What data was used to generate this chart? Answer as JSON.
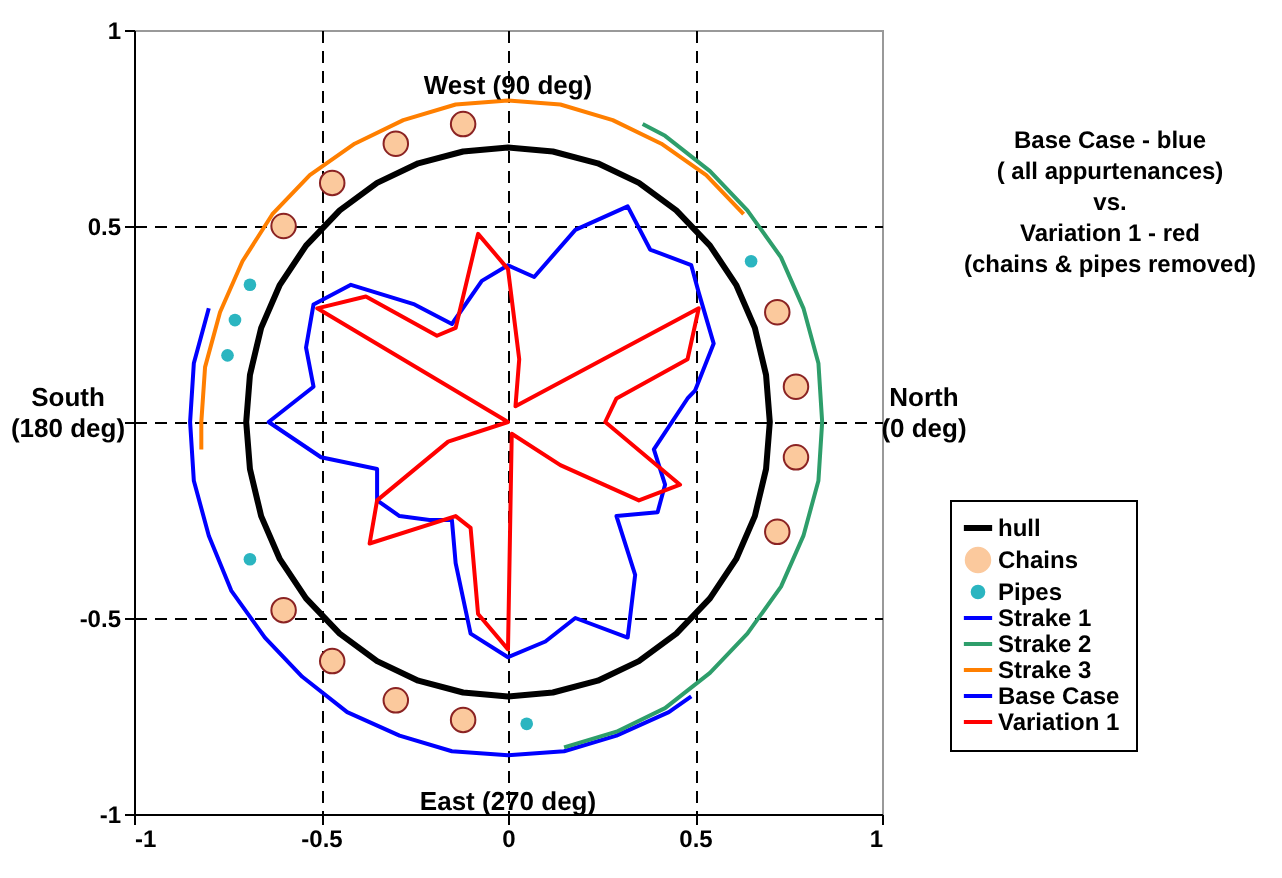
{
  "chart_data": {
    "type": "line",
    "annotations": [
      "West (90 deg)",
      "East (270 deg)",
      "North\n(0 deg)",
      "South\n(180 deg)",
      "Base Case - blue\n( all appurtenances)\nvs.\nVariation 1 - red\n(chains & pipes removed)"
    ],
    "xlim": [
      -1,
      1
    ],
    "ylim": [
      -1,
      1
    ],
    "xticks": [
      -1,
      -0.5,
      0,
      0.5,
      1
    ],
    "yticks": [
      -1,
      -0.5,
      {
        "value": 0,
        "label": null
      },
      0.5,
      1
    ],
    "grid": true,
    "legend": "right",
    "series": [
      {
        "name": "hull",
        "type": "line",
        "color": "#000000",
        "x": [
          0.7,
          0.69,
          0.66,
          0.61,
          0.54,
          0.45,
          0.35,
          0.24,
          0.12,
          0,
          -0.12,
          -0.24,
          -0.35,
          -0.45,
          -0.54,
          -0.61,
          -0.66,
          -0.69,
          -0.7,
          -0.69,
          -0.66,
          -0.61,
          -0.54,
          -0.45,
          -0.35,
          -0.24,
          -0.12,
          0,
          0.12,
          0.24,
          0.35,
          0.45,
          0.54,
          0.61,
          0.66,
          0.69,
          0.7,
          0.69
        ],
        "values": [
          0,
          0.12,
          0.24,
          0.35,
          0.45,
          0.54,
          0.61,
          0.66,
          0.69,
          0.7,
          0.69,
          0.66,
          0.61,
          0.54,
          0.45,
          0.35,
          0.24,
          0.12,
          0,
          -0.12,
          -0.24,
          -0.35,
          -0.45,
          -0.54,
          -0.61,
          -0.66,
          -0.69,
          -0.7,
          -0.69,
          -0.66,
          -0.61,
          -0.54,
          -0.45,
          -0.35,
          -0.24,
          -0.12,
          0,
          0.12
        ]
      },
      {
        "name": "Chains",
        "type": "scatter",
        "marker": "circle",
        "color": "#fbc99d",
        "x": [
          -0.12,
          -0.3,
          -0.47,
          -0.6,
          0.72,
          0.77,
          0.77,
          0.72,
          -0.6,
          -0.47,
          -0.3,
          -0.12
        ],
        "values": [
          0.76,
          0.71,
          0.61,
          0.5,
          0.28,
          0.09,
          -0.09,
          -0.28,
          -0.48,
          -0.61,
          -0.71,
          -0.76
        ]
      },
      {
        "name": "Pipes",
        "type": "scatter",
        "marker": "circle",
        "color": "#2bb5c0",
        "x": [
          0.65,
          -0.69,
          -0.73,
          -0.75,
          -0.69,
          0.05
        ],
        "values": [
          0.41,
          0.35,
          0.26,
          0.17,
          -0.35,
          -0.77
        ]
      },
      {
        "name": "Strake 1",
        "type": "line",
        "color": "#0000ff",
        "x": [
          -0.8,
          -0.84,
          -0.85,
          -0.84,
          -0.8,
          -0.74,
          -0.65,
          -0.55,
          -0.43,
          -0.29,
          -0.15,
          0,
          0.15,
          0.29,
          0.43,
          0.49
        ],
        "values": [
          0.29,
          0.15,
          0,
          -0.15,
          -0.29,
          -0.43,
          -0.55,
          -0.65,
          -0.74,
          -0.8,
          -0.84,
          -0.85,
          -0.84,
          -0.8,
          -0.74,
          -0.7
        ]
      },
      {
        "name": "Strake 2",
        "type": "line",
        "color": "#2e9e6b",
        "x": [
          0.36,
          0.42,
          0.54,
          0.64,
          0.73,
          0.79,
          0.83,
          0.84,
          0.83,
          0.79,
          0.73,
          0.64,
          0.54,
          0.42,
          0.29,
          0.15
        ],
        "values": [
          0.76,
          0.73,
          0.64,
          0.54,
          0.42,
          0.29,
          0.15,
          0,
          -0.15,
          -0.29,
          -0.42,
          -0.54,
          -0.64,
          -0.73,
          -0.79,
          -0.83
        ]
      },
      {
        "name": "Strake 3",
        "type": "line",
        "color": "#ff7f00",
        "x": [
          0.63,
          0.53,
          0.41,
          0.28,
          0.14,
          0,
          -0.14,
          -0.28,
          -0.41,
          -0.53,
          -0.63,
          -0.71,
          -0.77,
          -0.81,
          -0.82,
          -0.82
        ],
        "values": [
          0.53,
          0.63,
          0.71,
          0.77,
          0.81,
          0.82,
          0.81,
          0.77,
          0.71,
          0.63,
          0.53,
          0.41,
          0.28,
          0.14,
          0,
          -0.07
        ]
      },
      {
        "name": "Base Case",
        "type": "line",
        "color": "#0000ff",
        "x": [
          0.0,
          0.07,
          0.18,
          0.32,
          0.38,
          0.49,
          0.51,
          0.55,
          0.5,
          0.48,
          0.39,
          0.42,
          0.4,
          0.29,
          0.34,
          0.32,
          0.18,
          0.1,
          0.0,
          -0.1,
          -0.14,
          -0.15,
          -0.21,
          -0.29,
          -0.35,
          -0.35,
          -0.5,
          -0.64,
          -0.52,
          -0.54,
          -0.52,
          -0.42,
          -0.25,
          -0.15,
          -0.07,
          0.0,
          0.07
        ],
        "values": [
          0.4,
          0.37,
          0.49,
          0.55,
          0.44,
          0.4,
          0.33,
          0.2,
          0.08,
          0.06,
          -0.07,
          -0.16,
          -0.23,
          -0.24,
          -0.39,
          -0.55,
          -0.5,
          -0.56,
          -0.6,
          -0.54,
          -0.36,
          -0.25,
          -0.25,
          -0.24,
          -0.2,
          -0.12,
          -0.09,
          0.0,
          0.09,
          0.19,
          0.3,
          0.35,
          0.3,
          0.25,
          0.36,
          0.4,
          0.37
        ]
      },
      {
        "name": "Variation 1",
        "type": "line",
        "color": "#ff0000",
        "x": [
          0.0,
          -0.51,
          -0.38,
          -0.19,
          -0.14,
          -0.08,
          0.0,
          0.03,
          0.02,
          0.51,
          0.48,
          0.29,
          0.26,
          0.46,
          0.35,
          0.14,
          0.01,
          0.0,
          -0.08,
          -0.1,
          -0.14,
          -0.37,
          -0.35,
          -0.16,
          0.0,
          -0.51
        ],
        "values": [
          0.0,
          0.29,
          0.32,
          0.22,
          0.24,
          0.48,
          0.39,
          0.16,
          0.04,
          0.29,
          0.16,
          0.06,
          0.0,
          -0.16,
          -0.2,
          -0.11,
          -0.03,
          -0.58,
          -0.49,
          -0.27,
          -0.24,
          -0.31,
          -0.2,
          -0.05,
          0.0,
          0.29
        ]
      }
    ]
  }
}
